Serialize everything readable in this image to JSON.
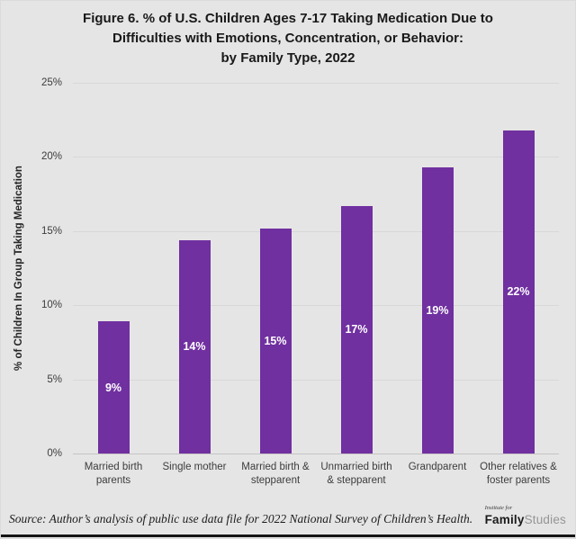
{
  "title": {
    "line1": "Figure 6. % of U.S. Children Ages 7-17 Taking Medication Due to",
    "line2": "Difficulties with Emotions, Concentration, or Behavior:",
    "line3": "by Family Type, 2022"
  },
  "chart_data": {
    "type": "bar",
    "title": "Figure 6. % of U.S. Children Ages 7-17 Taking Medication Due to Difficulties with Emotions, Concentration, or Behavior: by Family Type, 2022",
    "categories": [
      "Married birth parents",
      "Single mother",
      "Married birth & stepparent",
      "Unmarried birth & stepparent",
      "Grandparent",
      "Other relatives & foster parents"
    ],
    "values": [
      8.9,
      14.4,
      15.2,
      16.7,
      19.3,
      21.8
    ],
    "labels": [
      "9%",
      "14%",
      "15%",
      "17%",
      "19%",
      "22%"
    ],
    "xlabel": "",
    "ylabel": "% of Children In Group Taking Medication",
    "ylim": [
      0,
      25
    ],
    "ytick_step": 5,
    "grid": "horizontal",
    "legend_position": "none",
    "bar_color": "#7030A0",
    "data_label_color": "#FFFFFF"
  },
  "y_axis": {
    "title": "% of Children In Group Taking Medication",
    "ticks_desc": [
      "25%",
      "20%",
      "15%",
      "10%",
      "5%",
      "0%"
    ]
  },
  "footer": {
    "source": "Source: Author’s analysis of public use data file for 2022 National Survey of Children’s Health.",
    "logo_top": "Institute for",
    "logo_bold": "Family",
    "logo_light": "Studies"
  },
  "colors": {
    "bar": "#7030A0",
    "background": "#E6E5E5",
    "gridline": "#D9D8D8",
    "title_text": "#191919",
    "data_label": "#FFFFFF"
  }
}
